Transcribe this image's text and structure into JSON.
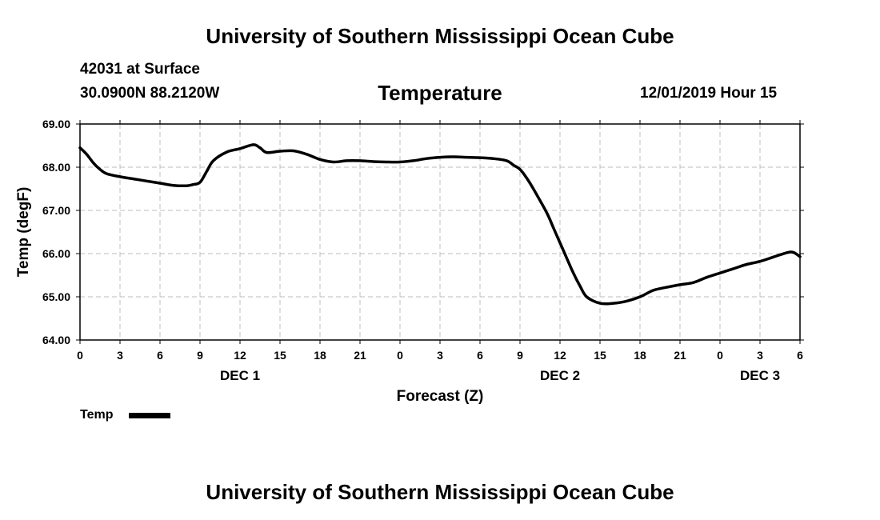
{
  "header": {
    "title": "University of Southern Mississippi Ocean Cube",
    "station": "42031 at Surface",
    "coords": "30.0900N 88.2120W",
    "variable": "Temperature",
    "datetime": "12/01/2019 Hour 15"
  },
  "footer": {
    "title": "University of Southern Mississippi Ocean Cube"
  },
  "chart_data": {
    "type": "line",
    "title": "Temperature",
    "xlabel": "Forecast (Z)",
    "ylabel": "Temp (degF)",
    "ylim": [
      64.0,
      69.0
    ],
    "xlim": [
      0,
      54
    ],
    "x_unit": "forecast hours from 2019-12-01 00Z",
    "yticks": [
      "64.00",
      "65.00",
      "66.00",
      "67.00",
      "68.00",
      "69.00"
    ],
    "yticks_values": [
      64,
      65,
      66,
      67,
      68,
      69
    ],
    "xticks_values": [
      0,
      3,
      6,
      9,
      12,
      15,
      18,
      21,
      24,
      27,
      30,
      33,
      36,
      39,
      42,
      45,
      48,
      51,
      54
    ],
    "xtick_labels": [
      "0",
      "3",
      "6",
      "9",
      "12",
      "15",
      "18",
      "21",
      "0",
      "3",
      "6",
      "9",
      "12",
      "15",
      "18",
      "21",
      "0",
      "3",
      "6"
    ],
    "day_labels": [
      {
        "text": "DEC 1",
        "at": 12
      },
      {
        "text": "DEC 2",
        "at": 36
      },
      {
        "text": "DEC 3",
        "at": 51
      }
    ],
    "grid": true,
    "legend": {
      "position": "bottom-left"
    },
    "series": [
      {
        "name": "Temp",
        "color": "#000000",
        "x": [
          0,
          0.5,
          1,
          1.5,
          2,
          3,
          4,
          5,
          6,
          7,
          8,
          8.5,
          9,
          9.5,
          10,
          11,
          12,
          13,
          13.5,
          14,
          15,
          16,
          17,
          18,
          19,
          20,
          21,
          22,
          23,
          24,
          25,
          26,
          27,
          28,
          29,
          30,
          31,
          32,
          32.5,
          33,
          33.5,
          34,
          35,
          35.5,
          36,
          36.5,
          37,
          37.5,
          38,
          39,
          40,
          41,
          42,
          43,
          44,
          45,
          46,
          47,
          48,
          49,
          50,
          51,
          52,
          53,
          53.5,
          54
        ],
        "values": [
          68.45,
          68.3,
          68.1,
          67.95,
          67.85,
          67.78,
          67.73,
          67.68,
          67.63,
          67.58,
          67.57,
          67.6,
          67.65,
          67.9,
          68.15,
          68.35,
          68.43,
          68.52,
          68.45,
          68.34,
          68.37,
          68.38,
          68.3,
          68.18,
          68.12,
          68.15,
          68.15,
          68.13,
          68.12,
          68.12,
          68.15,
          68.2,
          68.23,
          68.24,
          68.23,
          68.22,
          68.2,
          68.15,
          68.05,
          67.95,
          67.75,
          67.5,
          66.95,
          66.6,
          66.25,
          65.9,
          65.55,
          65.25,
          65.0,
          64.85,
          64.85,
          64.9,
          65.0,
          65.15,
          65.22,
          65.28,
          65.33,
          65.45,
          65.55,
          65.65,
          65.75,
          65.82,
          65.92,
          66.02,
          66.03,
          65.93
        ]
      }
    ]
  }
}
